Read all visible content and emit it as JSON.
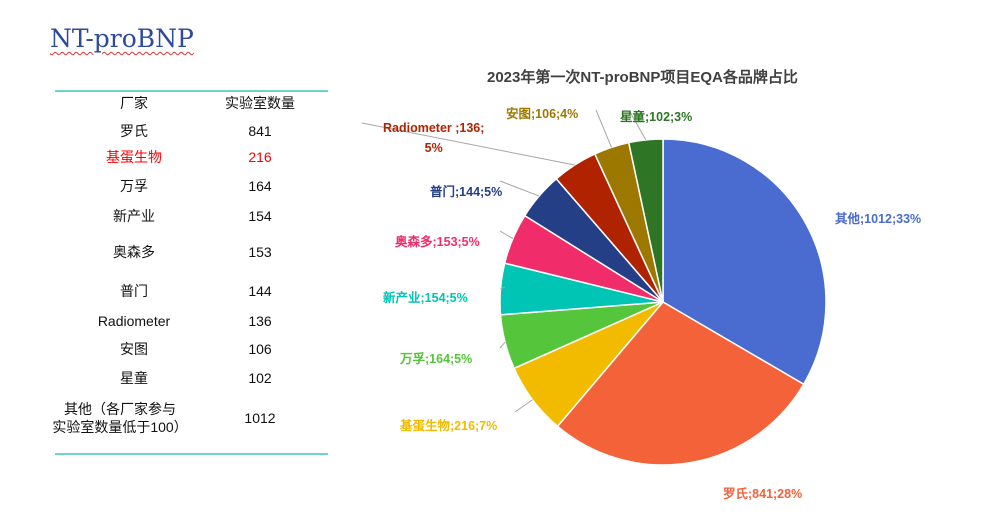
{
  "title": "NT-proBNP",
  "table": {
    "headers": [
      "厂家",
      "实验室数量"
    ],
    "rows": [
      [
        "罗氏",
        "841"
      ],
      [
        "基蛋生物",
        "216"
      ],
      [
        "万孚",
        "164"
      ],
      [
        "新产业",
        "154"
      ],
      [
        "奥森多",
        "153"
      ],
      [
        "普门",
        "144"
      ],
      [
        "Radiometer",
        "136"
      ],
      [
        "安图",
        "106"
      ],
      [
        "星童",
        "102"
      ],
      [
        "其他（各厂家参与\n实验室数量低于100）",
        "1012"
      ]
    ],
    "highlight_row": 1,
    "highlight_color": "#ff0000"
  },
  "chart_data": {
    "type": "pie",
    "title": "2023年第一次NT-proBNP项目EQA各品牌占比",
    "slices": [
      {
        "name": "其他",
        "value": 1012,
        "percent": 33,
        "label": "其他;1012;33%",
        "color": "#4a6bcf"
      },
      {
        "name": "罗氏",
        "value": 841,
        "percent": 28,
        "label": "罗氏;841;28%",
        "color": "#f4623a"
      },
      {
        "name": "基蛋生物",
        "value": 216,
        "percent": 7,
        "label": "基蛋生物;216;7%",
        "color": "#f2bb00"
      },
      {
        "name": "万孚",
        "value": 164,
        "percent": 5,
        "label": "万孚;164;5%",
        "color": "#55c63b"
      },
      {
        "name": "新产业",
        "value": 154,
        "percent": 5,
        "label": "新产业;154;5%",
        "color": "#00c4b4"
      },
      {
        "name": "奥森多",
        "value": 153,
        "percent": 5,
        "label": "奥森多;153;5%",
        "color": "#f02d6a"
      },
      {
        "name": "普门",
        "value": 144,
        "percent": 5,
        "label": "普门;144;5%",
        "color": "#253f87"
      },
      {
        "name": "Radiometer",
        "value": 136,
        "percent": 5,
        "label": "Radiometer ;136;\n5%",
        "color": "#b02300"
      },
      {
        "name": "安图",
        "value": 106,
        "percent": 4,
        "label": "安图;106;4%",
        "color": "#9d7800"
      },
      {
        "name": "星童",
        "value": 102,
        "percent": 3,
        "label": "星童;102;3%",
        "color": "#2e7626"
      }
    ]
  }
}
